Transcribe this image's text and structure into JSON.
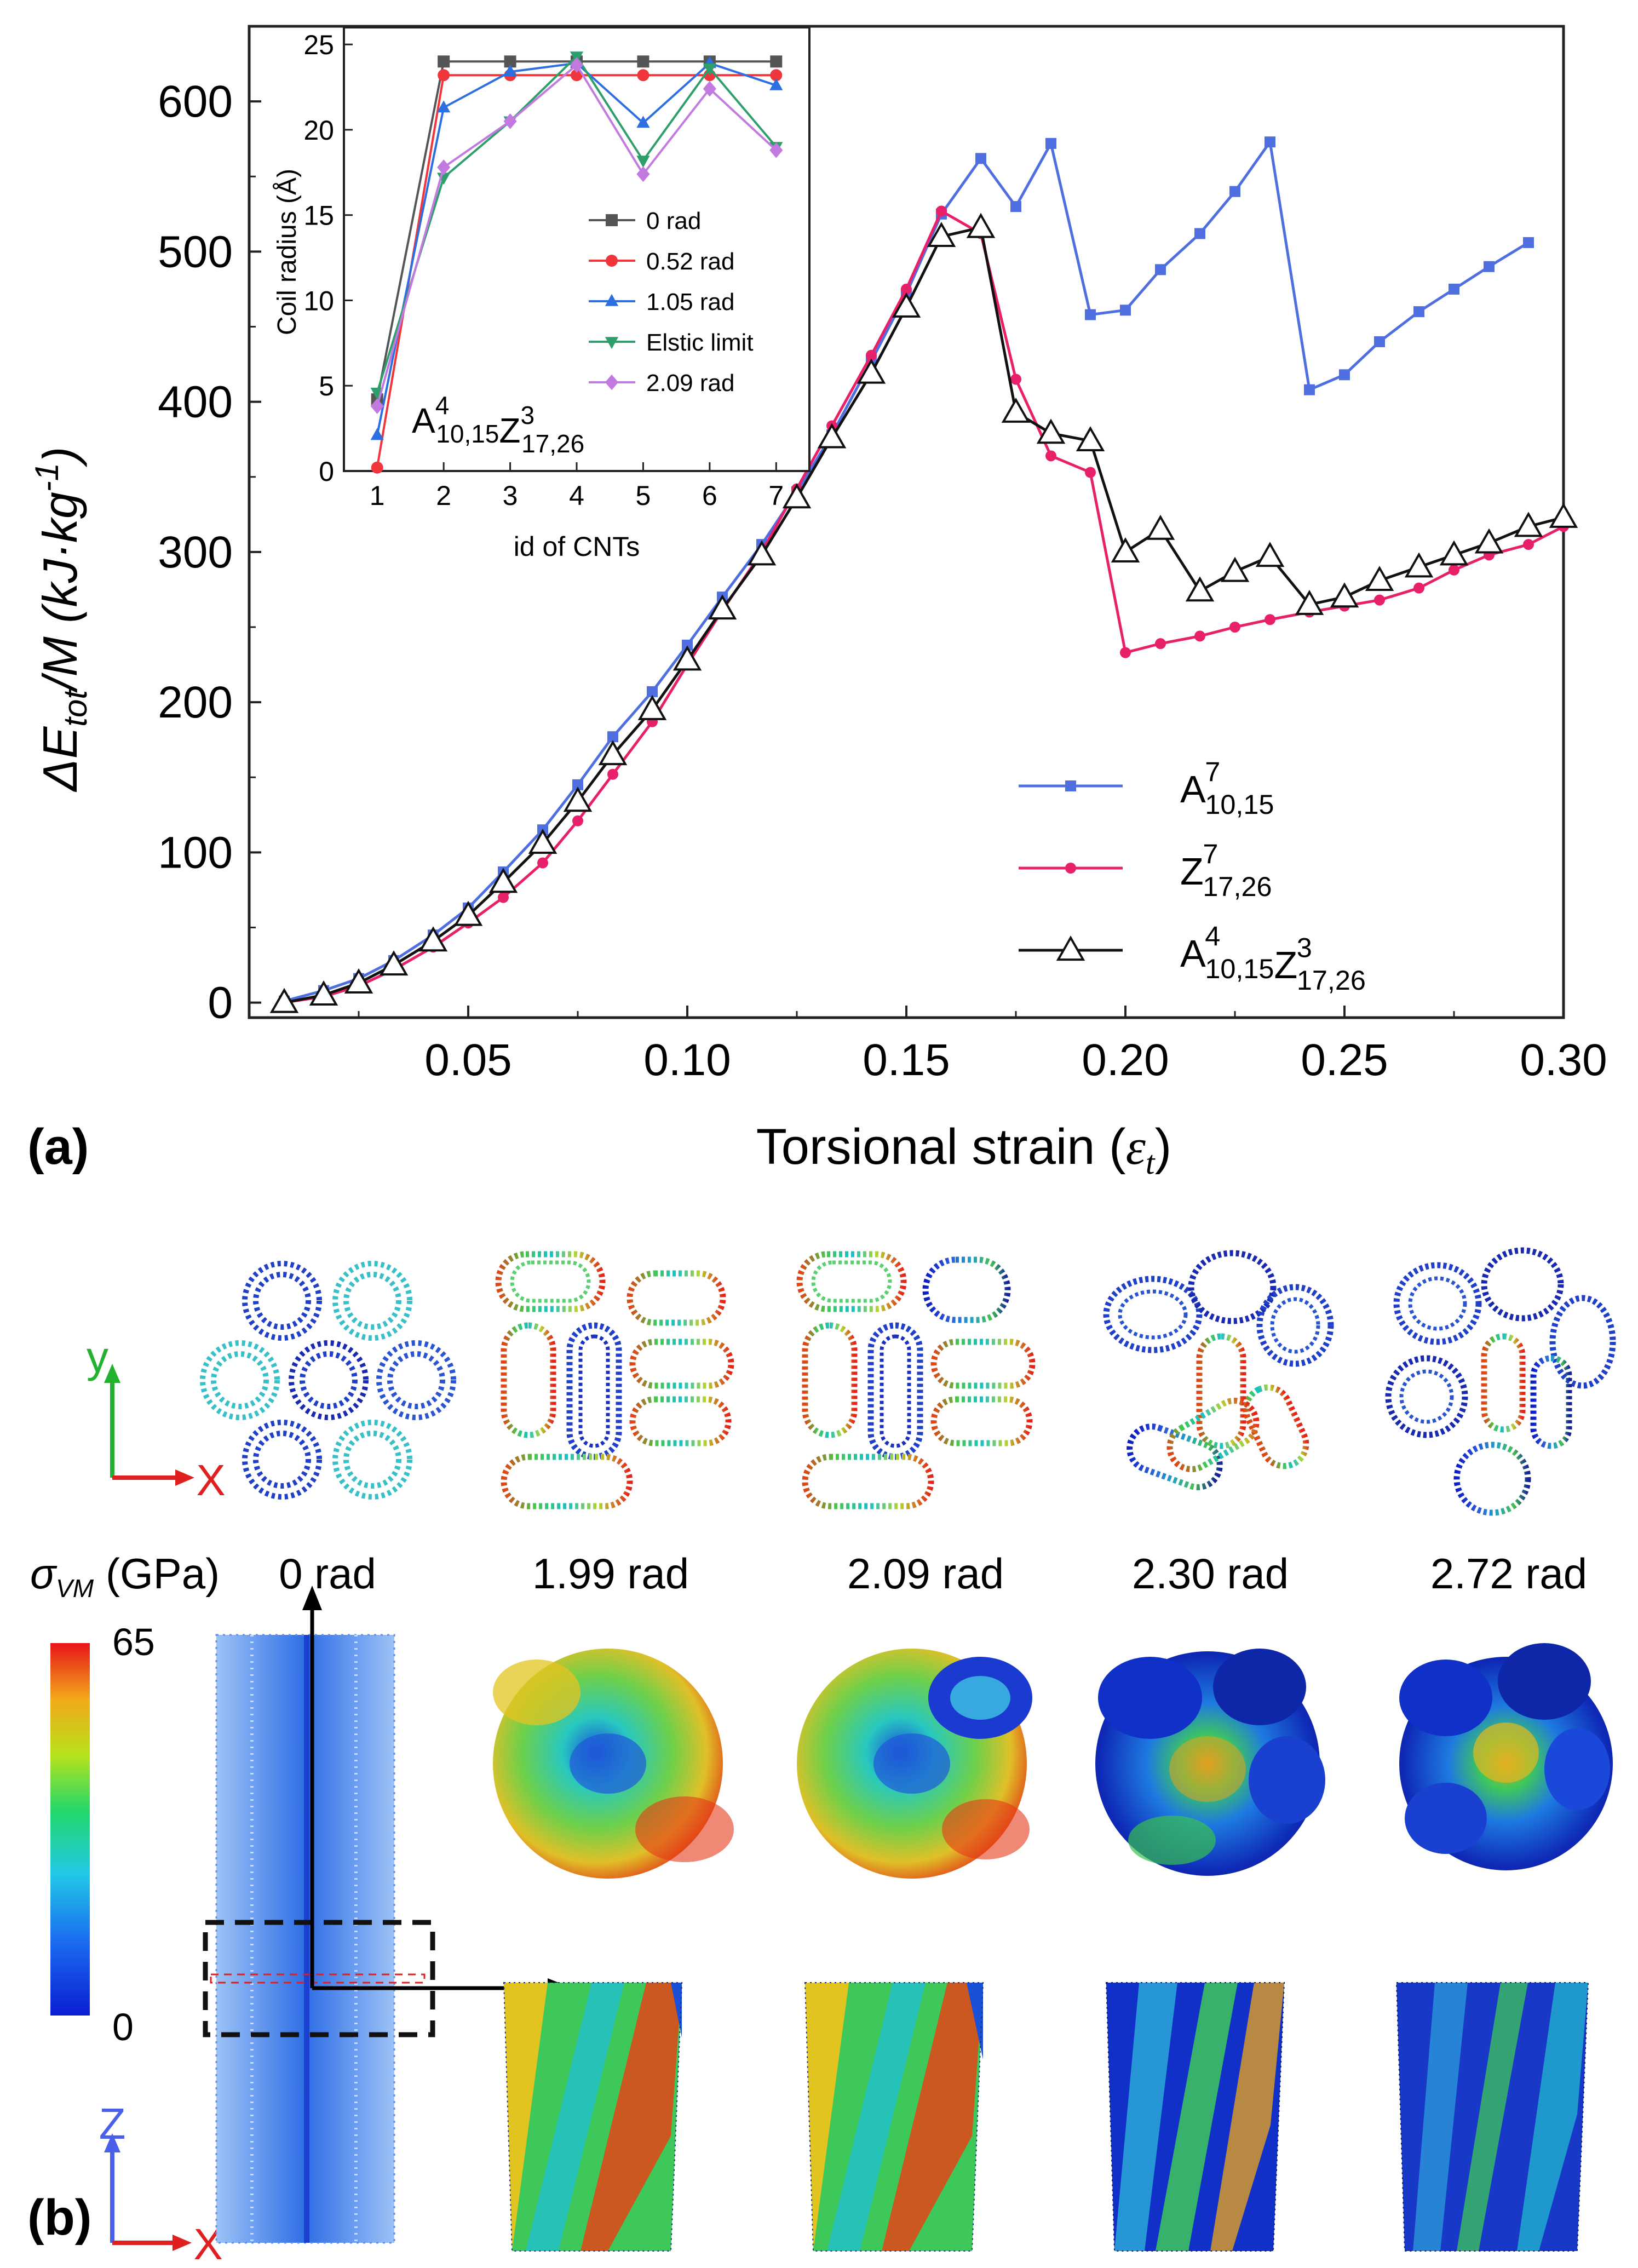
{
  "panel_a_label": "(a)",
  "panel_b_label": "(b)",
  "chart_data": [
    {
      "type": "line",
      "title": "",
      "xlabel": "Torsional strain (εt)",
      "ylabel": "ΔEtot/M (kJ·kg-1)",
      "xlim": [
        0.0,
        0.3
      ],
      "ylim": [
        -10,
        650
      ],
      "xticks": [
        "0.05",
        "0.10",
        "0.15",
        "0.20",
        "0.25",
        "0.30"
      ],
      "yticks": [
        "0",
        "100",
        "200",
        "300",
        "400",
        "500",
        "600"
      ],
      "legend_position": "bottom-right",
      "series": [
        {
          "name": "A7 10,15",
          "label_main": "A",
          "label_sup": "7",
          "label_sub": "10,15",
          "color": "#4f6fe0",
          "marker": "square",
          "x": [
            0.008,
            0.017,
            0.025,
            0.033,
            0.042,
            0.05,
            0.058,
            0.067,
            0.075,
            0.083,
            0.092,
            0.1,
            0.108,
            0.117,
            0.125,
            0.133,
            0.142,
            0.15,
            0.158,
            0.167,
            0.175,
            0.183,
            0.192,
            0.2,
            0.208,
            0.217,
            0.225,
            0.233,
            0.242,
            0.25,
            0.258,
            0.267,
            0.275,
            0.283,
            0.292
          ],
          "values": [
            1,
            8,
            16,
            28,
            45,
            63,
            87,
            115,
            145,
            177,
            207,
            238,
            270,
            305,
            340,
            378,
            427,
            472,
            525,
            562,
            530,
            572,
            458,
            461,
            488,
            512,
            540,
            573,
            408,
            418,
            440,
            460,
            475,
            490,
            506
          ]
        },
        {
          "name": "Z7 17,26",
          "label_main": "Z",
          "label_sup": "7",
          "label_sub": "17,26",
          "color": "#e8206a",
          "marker": "circle",
          "x": [
            0.008,
            0.017,
            0.025,
            0.033,
            0.042,
            0.05,
            0.058,
            0.067,
            0.075,
            0.083,
            0.092,
            0.1,
            0.108,
            0.117,
            0.125,
            0.133,
            0.142,
            0.15,
            0.158,
            0.167,
            0.175,
            0.183,
            0.192,
            0.2,
            0.208,
            0.217,
            0.225,
            0.233,
            0.242,
            0.25,
            0.258,
            0.267,
            0.275,
            0.283,
            0.292,
            0.3
          ],
          "values": [
            0,
            4,
            11,
            22,
            37,
            53,
            70,
            93,
            121,
            152,
            187,
            225,
            261,
            300,
            342,
            384,
            431,
            475,
            527,
            512,
            415,
            364,
            353,
            233,
            239,
            244,
            250,
            255,
            260,
            264,
            268,
            276,
            288,
            298,
            305,
            317
          ]
        },
        {
          "name": "A4 10,15 Z3 17,26",
          "label_main": "A",
          "label_sup": "4",
          "label_sub": "10,15",
          "label_main2": "Z",
          "label_sup2": "3",
          "label_sub2": "17,26",
          "color": "#111111",
          "marker": "open-triangle",
          "x": [
            0.008,
            0.017,
            0.025,
            0.033,
            0.042,
            0.05,
            0.058,
            0.067,
            0.075,
            0.083,
            0.092,
            0.1,
            0.108,
            0.117,
            0.125,
            0.133,
            0.142,
            0.15,
            0.158,
            0.167,
            0.175,
            0.183,
            0.192,
            0.2,
            0.208,
            0.217,
            0.225,
            0.233,
            0.242,
            0.25,
            0.258,
            0.267,
            0.275,
            0.283,
            0.292,
            0.3
          ],
          "values": [
            0,
            5,
            13,
            25,
            41,
            58,
            80,
            106,
            134,
            165,
            195,
            228,
            262,
            298,
            336,
            376,
            419,
            463,
            510,
            516,
            393,
            379,
            374,
            300,
            315,
            274,
            287,
            297,
            265,
            270,
            281,
            290,
            298,
            306,
            317,
            323
          ]
        }
      ]
    },
    {
      "type": "line",
      "title": "",
      "xlabel": "id of CNTs",
      "ylabel": "Coil radius (Å)",
      "xlim": [
        0.5,
        7.5
      ],
      "ylim": [
        0,
        26
      ],
      "xticks": [
        "1",
        "2",
        "3",
        "4",
        "5",
        "6",
        "7"
      ],
      "yticks": [
        "0",
        "5",
        "10",
        "15",
        "20",
        "25"
      ],
      "annotation": {
        "main": "A",
        "sup": "4",
        "sub": "10,15",
        "main2": "Z",
        "sup2": "3",
        "sub2": "17,26"
      },
      "legend_position": "center-right",
      "x": [
        1,
        2,
        3,
        4,
        5,
        6,
        7
      ],
      "series": [
        {
          "name": "0 rad",
          "color": "#555555",
          "marker": "square",
          "values": [
            4.2,
            24,
            24,
            24,
            24,
            24,
            24
          ]
        },
        {
          "name": "0.52 rad",
          "color": "#f0363a",
          "marker": "circle",
          "values": [
            0.2,
            23.2,
            23.2,
            23.2,
            23.2,
            23.2,
            23.2
          ]
        },
        {
          "name": "1.05 rad",
          "color": "#2d6fe0",
          "marker": "triangle-up",
          "values": [
            2.1,
            21.3,
            23.4,
            23.9,
            20.4,
            23.9,
            22.6
          ]
        },
        {
          "name": "Elstic limit",
          "color": "#2e9e6a",
          "marker": "triangle-down",
          "values": [
            4.6,
            17.2,
            20.5,
            24.3,
            18.2,
            23.6,
            19
          ]
        },
        {
          "name": "2.09 rad",
          "color": "#c27ae0",
          "marker": "diamond",
          "values": [
            3.8,
            17.8,
            20.5,
            23.8,
            17.4,
            22.4,
            18.8
          ]
        }
      ]
    }
  ],
  "panel_b": {
    "y_axis_label": "y",
    "x_axis_label": "X",
    "z_axis_label": "Z",
    "colorbar_title": "σVM (GPa)",
    "colorbar_title_sym": "σ",
    "colorbar_title_sub": "VM",
    "colorbar_title_unit": "(GPa)",
    "colorbar_max": "65",
    "colorbar_min": "0",
    "angles": [
      "0 rad",
      "1.99 rad",
      "2.09 rad",
      "2.30 rad",
      "2.72 rad"
    ]
  },
  "colors": {
    "axis": "#000000",
    "grid_frame": "#222222"
  }
}
